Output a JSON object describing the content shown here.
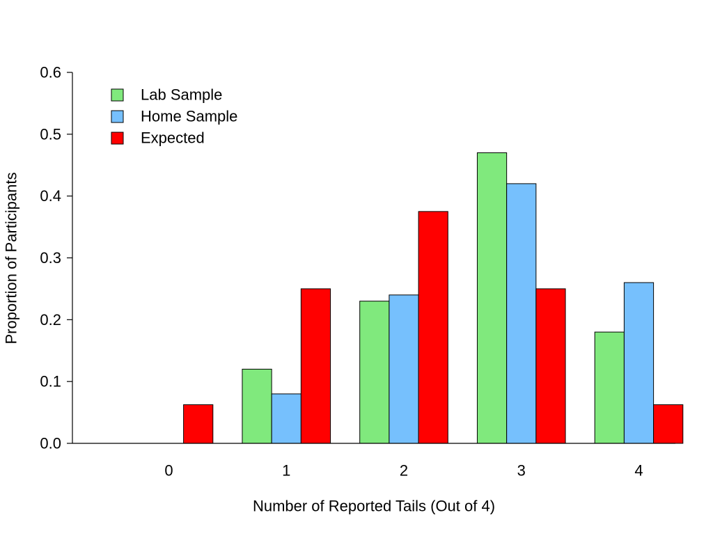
{
  "chart_data": {
    "type": "bar",
    "title": "",
    "xlabel": "Number of Reported Tails (Out of 4)",
    "ylabel": "Proportion of Participants",
    "categories": [
      "0",
      "1",
      "2",
      "3",
      "4"
    ],
    "series": [
      {
        "name": "Lab Sample",
        "values": [
          0,
          0.12,
          0.23,
          0.47,
          0.18
        ],
        "color": "#80e97d"
      },
      {
        "name": "Home Sample",
        "values": [
          0,
          0.08,
          0.24,
          0.42,
          0.26
        ],
        "color": "#76c0fd"
      },
      {
        "name": "Expected",
        "values": [
          0.0625,
          0.25,
          0.375,
          0.25,
          0.0625
        ],
        "color": "#ff0000"
      }
    ],
    "ylim": [
      0,
      0.6
    ],
    "yticks": [
      "0.0",
      "0.1",
      "0.2",
      "0.3",
      "0.4",
      "0.5",
      "0.6"
    ],
    "grid": false,
    "legend_position": "top-left"
  }
}
